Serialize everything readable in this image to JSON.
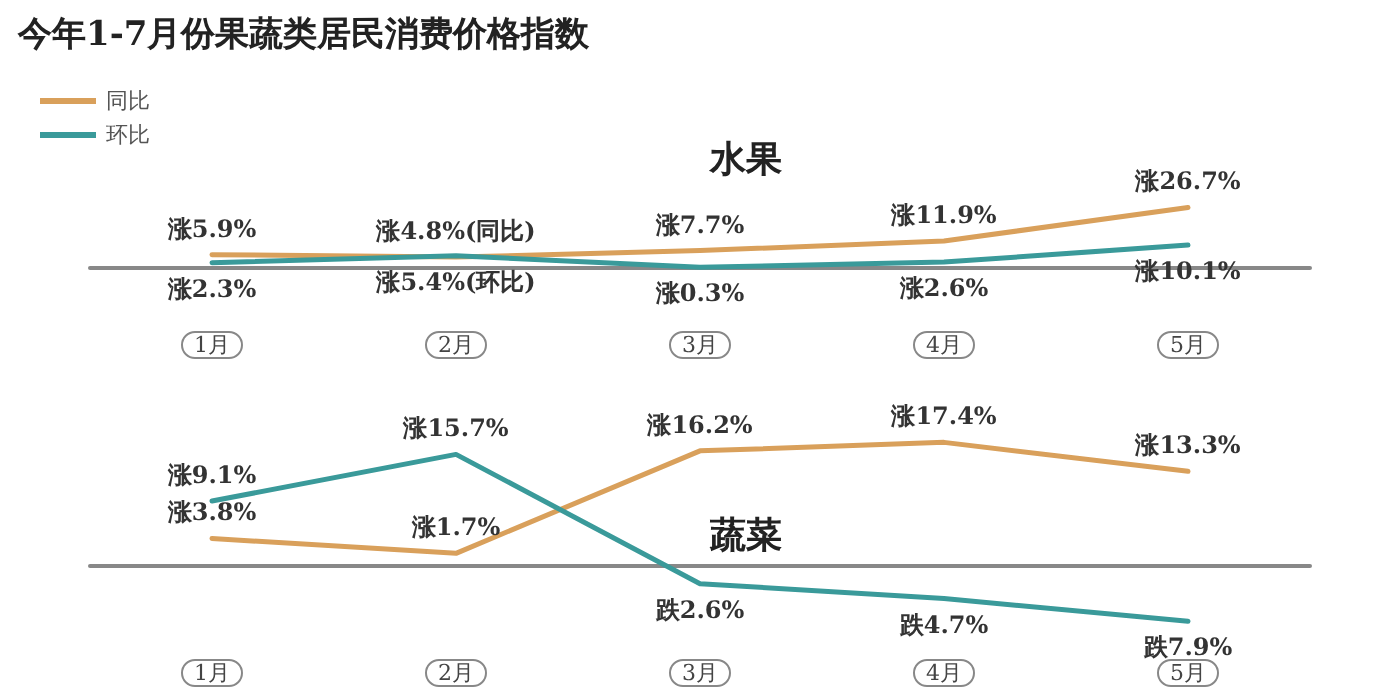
{
  "chart_data": [
    {
      "type": "line",
      "title": "今年1-7月份果蔬类居民消费价格指数",
      "subtitle": "水果",
      "categories": [
        "1月",
        "2月",
        "3月",
        "4月",
        "5月"
      ],
      "series": [
        {
          "name": "同比",
          "color": "#d9a05b",
          "values": [
            5.9,
            4.8,
            7.7,
            11.9,
            26.7
          ],
          "value_labels": [
            "涨5.9%",
            "涨4.8%(同比)",
            "涨7.7%",
            "涨11.9%",
            "涨26.7%"
          ]
        },
        {
          "name": "环比",
          "color": "#3a9a9a",
          "values": [
            2.3,
            5.4,
            0.3,
            2.6,
            10.1
          ],
          "value_labels": [
            "涨2.3%",
            "涨5.4%(环比)",
            "涨0.3%",
            "涨2.6%",
            "涨10.1%"
          ]
        }
      ],
      "legend": "top left",
      "grid": false,
      "marker": "none",
      "tick_labels": "x"
    },
    {
      "type": "line",
      "subtitle": "蔬菜",
      "categories": [
        "1月",
        "2月",
        "3月",
        "4月",
        "5月"
      ],
      "series": [
        {
          "color": "#d9a05b",
          "values": [
            3.8,
            1.7,
            16.2,
            17.4,
            13.3
          ],
          "value_labels": [
            "涨3.8%",
            "涨1.7%",
            "涨16.2%",
            "涨17.4%",
            "涨13.3%"
          ]
        },
        {
          "color": "#3a9a9a",
          "values": [
            9.1,
            15.7,
            -2.6,
            -4.7,
            -7.9
          ],
          "value_labels": [
            "涨9.1%",
            "涨15.7%",
            "跌2.6%",
            "跌4.7%",
            "跌7.9%"
          ]
        }
      ],
      "legend": false,
      "grid": false,
      "marker": "none",
      "tick_labels": "x"
    }
  ]
}
